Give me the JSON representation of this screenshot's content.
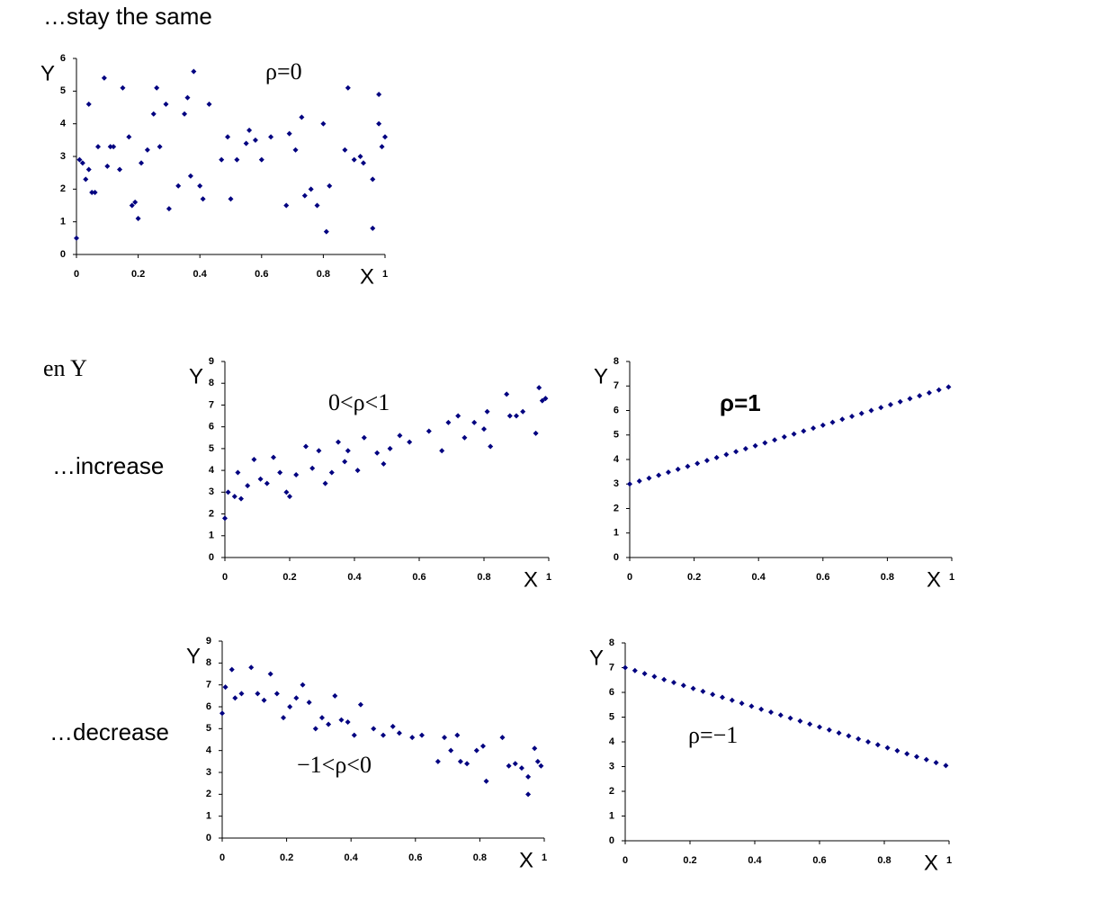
{
  "slide": {
    "headings": [
      "…stay the same",
      "en Y",
      "…increase",
      "…decrease"
    ]
  },
  "chart_data": [
    {
      "type": "scatter",
      "annotation": "ρ=0",
      "x_label": "X",
      "y_label": "Y",
      "color": "#000080",
      "grid": false,
      "xlim": [
        0,
        1
      ],
      "xticks": [
        0,
        0.2,
        0.4,
        0.6,
        0.8,
        1
      ],
      "ylim": [
        0,
        6
      ],
      "yticks": [
        0,
        1,
        2,
        3,
        4,
        5,
        6
      ],
      "x": [
        0.0,
        0.01,
        0.02,
        0.03,
        0.04,
        0.04,
        0.05,
        0.06,
        0.07,
        0.09,
        0.1,
        0.11,
        0.12,
        0.14,
        0.15,
        0.17,
        0.18,
        0.19,
        0.2,
        0.21,
        0.23,
        0.25,
        0.26,
        0.27,
        0.29,
        0.3,
        0.33,
        0.35,
        0.36,
        0.37,
        0.38,
        0.4,
        0.41,
        0.43,
        0.47,
        0.49,
        0.5,
        0.52,
        0.55,
        0.56,
        0.58,
        0.6,
        0.63,
        0.68,
        0.69,
        0.71,
        0.73,
        0.74,
        0.76,
        0.78,
        0.8,
        0.81,
        0.82,
        0.87,
        0.88,
        0.9,
        0.92,
        0.93,
        0.96,
        0.96,
        0.98,
        0.98,
        0.99,
        1.0
      ],
      "values": [
        0.5,
        2.9,
        2.8,
        2.3,
        4.6,
        2.6,
        1.9,
        1.9,
        3.3,
        5.4,
        2.7,
        3.3,
        3.3,
        2.6,
        5.1,
        3.6,
        1.5,
        1.6,
        1.1,
        2.8,
        3.2,
        4.3,
        5.1,
        3.3,
        4.6,
        1.4,
        2.1,
        4.3,
        4.8,
        2.4,
        5.6,
        2.1,
        1.7,
        4.6,
        2.9,
        3.6,
        1.7,
        2.9,
        3.4,
        3.8,
        3.5,
        2.9,
        3.6,
        1.5,
        3.7,
        3.2,
        4.2,
        1.8,
        2.0,
        1.5,
        4.0,
        0.7,
        2.1,
        3.2,
        5.1,
        2.9,
        3.0,
        2.8,
        2.3,
        0.8,
        4.9,
        4.0,
        3.3,
        3.6
      ]
    },
    {
      "type": "scatter",
      "annotation": "0<ρ<1",
      "x_label": "X",
      "y_label": "Y",
      "color": "#000080",
      "grid": false,
      "xlim": [
        0,
        1
      ],
      "xticks": [
        0,
        0.2,
        0.4,
        0.6,
        0.8,
        1
      ],
      "ylim": [
        0,
        9
      ],
      "yticks": [
        0,
        1,
        2,
        3,
        4,
        5,
        6,
        7,
        8,
        9
      ],
      "x": [
        0,
        0.01,
        0.03,
        0.04,
        0.05,
        0.07,
        0.09,
        0.11,
        0.13,
        0.15,
        0.17,
        0.19,
        0.2,
        0.22,
        0.25,
        0.27,
        0.29,
        0.31,
        0.33,
        0.35,
        0.37,
        0.38,
        0.41,
        0.43,
        0.47,
        0.49,
        0.51,
        0.54,
        0.57,
        0.63,
        0.67,
        0.69,
        0.72,
        0.74,
        0.77,
        0.8,
        0.81,
        0.82,
        0.87,
        0.88,
        0.9,
        0.92,
        0.96,
        0.97,
        0.98,
        0.99
      ],
      "values": [
        1.8,
        3.0,
        2.8,
        3.9,
        2.7,
        3.3,
        4.5,
        3.6,
        3.4,
        4.6,
        3.9,
        3.0,
        2.8,
        3.8,
        5.1,
        4.1,
        4.9,
        3.4,
        3.9,
        5.3,
        4.4,
        4.9,
        4.0,
        5.5,
        4.8,
        4.3,
        5.0,
        5.6,
        5.3,
        5.8,
        4.9,
        6.2,
        6.5,
        5.5,
        6.2,
        5.9,
        6.7,
        5.1,
        7.5,
        6.5,
        6.5,
        6.7,
        5.7,
        7.8,
        7.2,
        7.3
      ]
    },
    {
      "type": "scatter",
      "annotation": "ρ=1",
      "x_label": "X",
      "y_label": "Y",
      "color": "#000080",
      "grid": false,
      "xlim": [
        0,
        1
      ],
      "xticks": [
        0,
        0.2,
        0.4,
        0.6,
        0.8,
        1
      ],
      "ylim": [
        0,
        8
      ],
      "yticks": [
        0,
        1,
        2,
        3,
        4,
        5,
        6,
        7,
        8
      ],
      "x": [
        0,
        0.03,
        0.06,
        0.09,
        0.12,
        0.15,
        0.18,
        0.21,
        0.24,
        0.27,
        0.3,
        0.33,
        0.36,
        0.39,
        0.42,
        0.45,
        0.48,
        0.51,
        0.54,
        0.57,
        0.6,
        0.63,
        0.66,
        0.69,
        0.72,
        0.75,
        0.78,
        0.81,
        0.84,
        0.87,
        0.9,
        0.93,
        0.96,
        0.99
      ],
      "values": [
        3,
        3.12,
        3.24,
        3.36,
        3.48,
        3.6,
        3.72,
        3.84,
        3.96,
        4.08,
        4.2,
        4.32,
        4.44,
        4.56,
        4.68,
        4.8,
        4.92,
        5.04,
        5.16,
        5.28,
        5.4,
        5.52,
        5.64,
        5.76,
        5.88,
        6,
        6.12,
        6.24,
        6.36,
        6.48,
        6.6,
        6.72,
        6.84,
        6.96
      ]
    },
    {
      "type": "scatter",
      "annotation": "−1<ρ<0",
      "x_label": "X",
      "y_label": "Y",
      "color": "#000080",
      "grid": false,
      "xlim": [
        0,
        1
      ],
      "xticks": [
        0,
        0.2,
        0.4,
        0.6,
        0.8,
        1
      ],
      "ylim": [
        0,
        9
      ],
      "yticks": [
        0,
        1,
        2,
        3,
        4,
        5,
        6,
        7,
        8,
        9
      ],
      "x": [
        0,
        0.01,
        0.03,
        0.04,
        0.06,
        0.09,
        0.11,
        0.13,
        0.15,
        0.17,
        0.19,
        0.21,
        0.23,
        0.25,
        0.27,
        0.29,
        0.31,
        0.33,
        0.35,
        0.37,
        0.39,
        0.41,
        0.43,
        0.47,
        0.5,
        0.53,
        0.55,
        0.59,
        0.62,
        0.67,
        0.69,
        0.71,
        0.73,
        0.74,
        0.76,
        0.79,
        0.81,
        0.82,
        0.87,
        0.89,
        0.91,
        0.93,
        0.95,
        0.95,
        0.97,
        0.98,
        0.99
      ],
      "values": [
        5.7,
        6.9,
        7.7,
        6.4,
        6.6,
        7.8,
        6.6,
        6.3,
        7.5,
        6.6,
        5.5,
        6.0,
        6.4,
        7.0,
        6.2,
        5.0,
        5.5,
        5.2,
        6.5,
        5.4,
        5.3,
        4.7,
        6.1,
        5.0,
        4.7,
        5.1,
        4.8,
        4.6,
        4.7,
        3.5,
        4.6,
        4.0,
        4.7,
        3.5,
        3.4,
        4.0,
        4.2,
        2.6,
        4.6,
        3.3,
        3.4,
        3.2,
        2.8,
        2.0,
        4.1,
        3.5,
        3.3
      ]
    },
    {
      "type": "scatter",
      "annotation": "ρ=−1",
      "x_label": "X",
      "y_label": "Y",
      "color": "#000080",
      "grid": false,
      "xlim": [
        0,
        1
      ],
      "xticks": [
        0,
        0.2,
        0.4,
        0.6,
        0.8,
        1
      ],
      "ylim": [
        0,
        8
      ],
      "yticks": [
        0,
        1,
        2,
        3,
        4,
        5,
        6,
        7,
        8
      ],
      "x": [
        0,
        0.03,
        0.06,
        0.09,
        0.12,
        0.15,
        0.18,
        0.21,
        0.24,
        0.27,
        0.3,
        0.33,
        0.36,
        0.39,
        0.42,
        0.45,
        0.48,
        0.51,
        0.54,
        0.57,
        0.6,
        0.63,
        0.66,
        0.69,
        0.72,
        0.75,
        0.78,
        0.81,
        0.84,
        0.87,
        0.9,
        0.93,
        0.96,
        0.99
      ],
      "values": [
        7,
        6.88,
        6.76,
        6.64,
        6.52,
        6.4,
        6.28,
        6.16,
        6.04,
        5.92,
        5.8,
        5.68,
        5.56,
        5.44,
        5.32,
        5.2,
        5.08,
        4.96,
        4.84,
        4.72,
        4.6,
        4.48,
        4.36,
        4.24,
        4.12,
        4,
        3.88,
        3.76,
        3.64,
        3.52,
        3.4,
        3.28,
        3.16,
        3.04
      ]
    }
  ]
}
